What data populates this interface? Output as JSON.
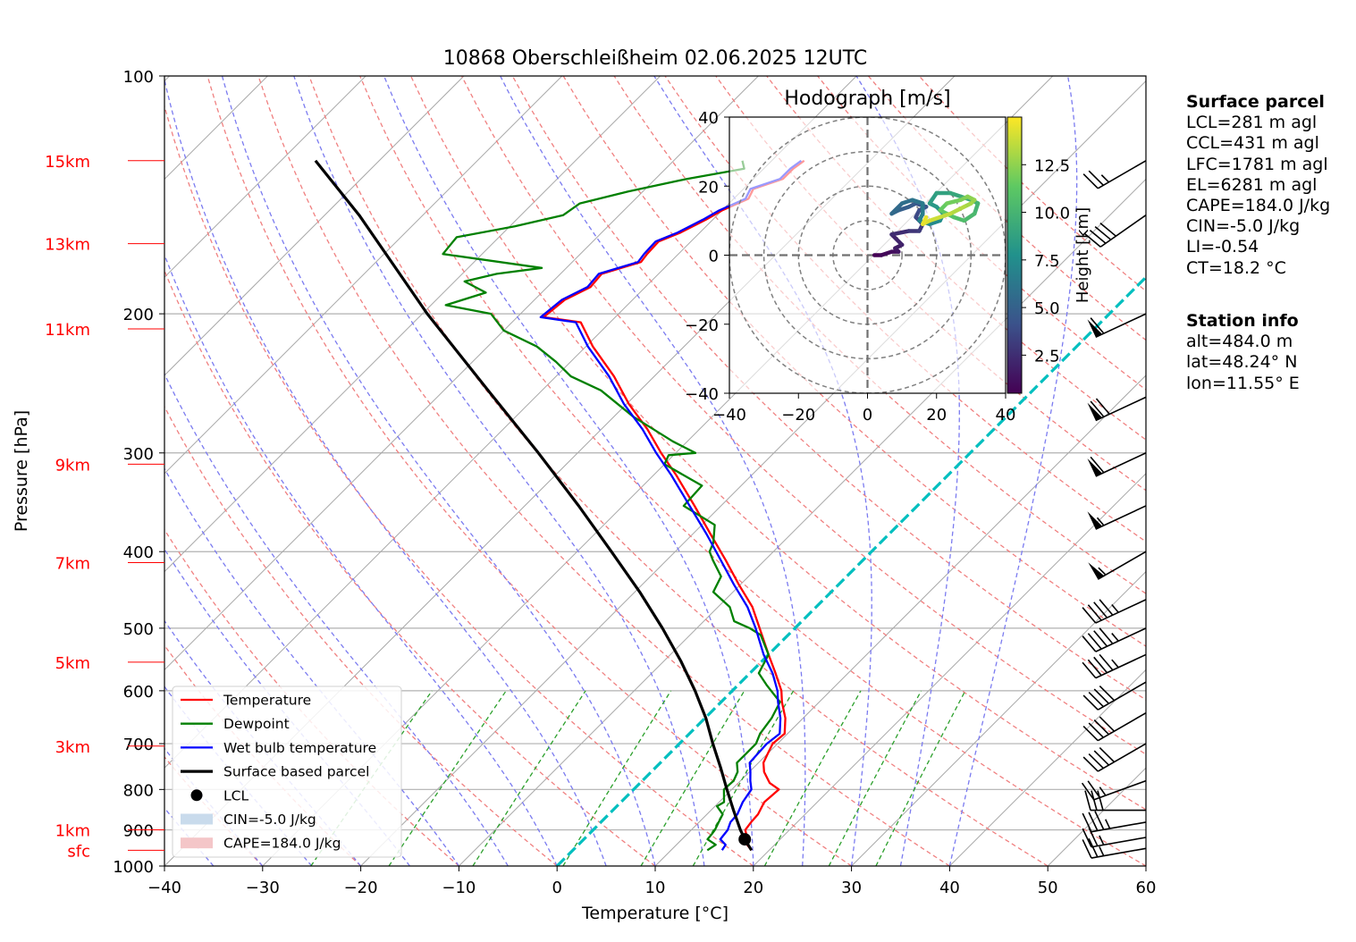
{
  "title": "10868 Oberschleißheim 02.06.2025 12UTC",
  "colors": {
    "temperature": "#ff0000",
    "dewpoint": "#008000",
    "wetbulb": "#0000ff",
    "parcel": "#000000",
    "isotherm_zero": "#00bfbf",
    "dry_adiabat": "#f08080",
    "moist_adiabat": "#7b7bf0",
    "mixing_ratio": "#2ca02c",
    "cape_fill": "#f4c6c8",
    "cin_fill": "#c9dbec",
    "altitude_labels": "#ff0000"
  },
  "chart_data": [
    {
      "type": "line",
      "subtype": "skew-T log-p diagram",
      "title": "10868 Oberschleißheim 02.06.2025 12UTC",
      "xlabel": "Temperature [°C]",
      "ylabel": "Pressure [hPa]",
      "xlim": [
        -40,
        60
      ],
      "ylim": [
        1000,
        100
      ],
      "y_scale": "log",
      "x_ticks": [
        -40,
        -30,
        -20,
        -10,
        0,
        10,
        20,
        30,
        40,
        50,
        60
      ],
      "y_ticks": [
        100,
        200,
        300,
        400,
        500,
        600,
        700,
        800,
        900,
        1000
      ],
      "grid": true,
      "altitude_labels": [
        {
          "label": "15km",
          "p": 128
        },
        {
          "label": "13km",
          "p": 163
        },
        {
          "label": "11km",
          "p": 209
        },
        {
          "label": "9km",
          "p": 310
        },
        {
          "label": "7km",
          "p": 413
        },
        {
          "label": "5km",
          "p": 552
        },
        {
          "label": "3km",
          "p": 705
        },
        {
          "label": "1km",
          "p": 900
        },
        {
          "label": "sfc",
          "p": 955
        }
      ],
      "legend_position": "lower left",
      "series": [
        {
          "name": "Temperature",
          "p": [
            955,
            940,
            925,
            915,
            900,
            880,
            860,
            830,
            800,
            785,
            760,
            740,
            720,
            700,
            680,
            650,
            620,
            600,
            570,
            540,
            500,
            470,
            440,
            410,
            380,
            350,
            320,
            300,
            280,
            260,
            240,
            220,
            205,
            202,
            192,
            185,
            178,
            172,
            168,
            162,
            158,
            152,
            148,
            143,
            139,
            135,
            131,
            128
          ],
          "t": [
            18.2,
            17.2,
            16.4,
            16.2,
            15.5,
            15.3,
            15.2,
            14.6,
            14.8,
            13.2,
            11.5,
            10.5,
            10.0,
            9.5,
            9.7,
            8.2,
            6.2,
            5.0,
            2.6,
            0.0,
            -3.6,
            -6.5,
            -10.2,
            -14.0,
            -18.2,
            -22.7,
            -27.7,
            -31.5,
            -35.3,
            -39.8,
            -44.1,
            -49.3,
            -53.0,
            -57.3,
            -56.9,
            -55.6,
            -55.8,
            -53.0,
            -53.2,
            -53.3,
            -52.0,
            -50.7,
            -50.0,
            -48.5,
            -49.0,
            -47.0,
            -47.0,
            -46.7
          ]
        },
        {
          "name": "Dewpoint",
          "p": [
            955,
            940,
            925,
            910,
            900,
            880,
            860,
            840,
            830,
            800,
            780,
            760,
            740,
            720,
            700,
            680,
            650,
            620,
            590,
            570,
            540,
            510,
            500,
            490,
            470,
            450,
            430,
            410,
            400,
            390,
            370,
            350,
            330,
            310,
            302,
            300,
            290,
            270,
            250,
            240,
            230,
            220,
            210,
            200,
            195,
            188,
            182,
            178,
            175,
            168,
            160,
            155,
            150,
            145,
            140,
            135,
            131,
            128
          ],
          "t": [
            13.7,
            14.0,
            12.6,
            12.5,
            12.4,
            12.0,
            11.6,
            10.2,
            10.5,
            9.2,
            9.3,
            8.8,
            7.8,
            7.8,
            7.8,
            7.2,
            6.8,
            6.0,
            2.9,
            0.9,
            0.0,
            -2.8,
            -4.6,
            -6.9,
            -8.8,
            -12.0,
            -12.8,
            -15.3,
            -16.5,
            -17.0,
            -18.7,
            -23.8,
            -24.0,
            -30.0,
            -30.5,
            -28.0,
            -31.5,
            -38.0,
            -44.0,
            -48.5,
            -51.5,
            -55.0,
            -60.0,
            -63.0,
            -68.5,
            -65.7,
            -69.0,
            -66.5,
            -62.5,
            -74.0,
            -74.3,
            -69.5,
            -65.7,
            -65.2,
            -61.5,
            -56.8,
            -52.0,
            -53.0
          ]
        },
        {
          "name": "Wet bulb temperature",
          "p": [
            955,
            940,
            925,
            900,
            880,
            860,
            830,
            800,
            780,
            760,
            740,
            720,
            700,
            680,
            650,
            620,
            600,
            570,
            540,
            500,
            470,
            440,
            410,
            380,
            350,
            320,
            300,
            280,
            260,
            240,
            220,
            205,
            202,
            192,
            185,
            178,
            172,
            168,
            162,
            158,
            152,
            148,
            143,
            139,
            135,
            131,
            128
          ],
          "t": [
            15.2,
            15.0,
            13.9,
            13.7,
            13.2,
            13.1,
            12.4,
            12.0,
            11.0,
            10.1,
            9.1,
            9.0,
            8.9,
            9.2,
            7.7,
            5.8,
            4.6,
            2.3,
            -0.5,
            -4.0,
            -7.0,
            -10.7,
            -14.5,
            -18.6,
            -23.2,
            -28.2,
            -32.0,
            -35.8,
            -40.3,
            -44.6,
            -49.8,
            -53.5,
            -57.6,
            -57.2,
            -55.9,
            -56.1,
            -53.3,
            -53.5,
            -53.6,
            -52.3,
            -51.0,
            -50.3,
            -48.8,
            -49.3,
            -47.3,
            -47.3,
            -47.0
          ]
        },
        {
          "name": "Surface based parcel",
          "p": [
            955,
            925,
            900,
            850,
            800,
            750,
            700,
            650,
            600,
            550,
            500,
            450,
            400,
            350,
            300,
            250,
            200,
            150,
            128
          ],
          "t": [
            18.2,
            16.4,
            15.0,
            12.3,
            9.5,
            6.6,
            3.4,
            0.1,
            -3.8,
            -8.3,
            -13.5,
            -19.5,
            -26.5,
            -34.5,
            -44.0,
            -55.5,
            -69.5,
            -86.5,
            -96.5
          ]
        },
        {
          "name": "LCL",
          "p": [
            925
          ],
          "t": [
            16.4
          ]
        }
      ],
      "shading": [
        {
          "name": "CIN=-5.0 J/kg"
        },
        {
          "name": "CAPE=184.0 J/kg"
        }
      ],
      "wind_barbs": [
        {
          "p": 950,
          "speed_kt": 25,
          "direction_deg": 260
        },
        {
          "p": 920,
          "speed_kt": 25,
          "direction_deg": 260
        },
        {
          "p": 880,
          "speed_kt": 35,
          "direction_deg": 260
        },
        {
          "p": 850,
          "speed_kt": 30,
          "direction_deg": 270
        },
        {
          "p": 780,
          "speed_kt": 25,
          "direction_deg": 250
        },
        {
          "p": 700,
          "speed_kt": 40,
          "direction_deg": 240
        },
        {
          "p": 640,
          "speed_kt": 40,
          "direction_deg": 240
        },
        {
          "p": 585,
          "speed_kt": 40,
          "direction_deg": 240
        },
        {
          "p": 540,
          "speed_kt": 45,
          "direction_deg": 245
        },
        {
          "p": 500,
          "speed_kt": 45,
          "direction_deg": 245
        },
        {
          "p": 460,
          "speed_kt": 45,
          "direction_deg": 245
        },
        {
          "p": 400,
          "speed_kt": 55,
          "direction_deg": 240
        },
        {
          "p": 350,
          "speed_kt": 55,
          "direction_deg": 245
        },
        {
          "p": 300,
          "speed_kt": 60,
          "direction_deg": 245
        },
        {
          "p": 255,
          "speed_kt": 70,
          "direction_deg": 245
        },
        {
          "p": 200,
          "speed_kt": 60,
          "direction_deg": 245
        },
        {
          "p": 150,
          "speed_kt": 40,
          "direction_deg": 235
        },
        {
          "p": 128,
          "speed_kt": 25,
          "direction_deg": 240
        }
      ]
    },
    {
      "type": "line",
      "subtype": "hodograph",
      "title": "Hodograph [m/s]",
      "xlim": [
        -40,
        40
      ],
      "ylim": [
        -40,
        40
      ],
      "x_ticks": [
        -40,
        -20,
        0,
        20,
        40
      ],
      "y_ticks": [
        -40,
        -20,
        0,
        20,
        40
      ],
      "rings": [
        10,
        20,
        30,
        40
      ],
      "colorbar": {
        "label": "Height [km]",
        "ticks": [
          2.5,
          5.0,
          7.5,
          10.0,
          12.5
        ],
        "range": [
          0.5,
          15
        ]
      },
      "u": [
        2,
        4,
        7,
        9,
        8,
        10,
        7,
        12,
        15,
        16,
        14,
        15,
        17,
        14,
        12,
        9,
        7,
        10,
        13,
        16,
        16,
        15,
        18,
        21,
        22,
        20,
        18,
        20,
        24,
        27,
        30,
        32,
        31,
        28,
        25,
        23,
        21,
        23,
        27,
        29,
        31,
        30,
        28,
        24,
        21,
        18,
        16,
        17
      ],
      "v": [
        0,
        0,
        1,
        1,
        2,
        3,
        6,
        7,
        7,
        9,
        11,
        13,
        14,
        15,
        14,
        13,
        12,
        15,
        16,
        15,
        12,
        10,
        9,
        10,
        12,
        14,
        15,
        18,
        18,
        17,
        16,
        15,
        12,
        10,
        11,
        12,
        13,
        15,
        16,
        17,
        16,
        15,
        14,
        12,
        11,
        10,
        9,
        11
      ],
      "height_km": [
        0.5,
        0.8,
        1.1,
        1.4,
        1.7,
        2.0,
        2.4,
        2.8,
        3.1,
        3.4,
        3.7,
        4.0,
        4.3,
        4.6,
        4.9,
        5.2,
        5.5,
        5.8,
        6.1,
        6.4,
        6.7,
        7.0,
        7.3,
        7.6,
        7.9,
        8.2,
        8.5,
        8.8,
        9.1,
        9.4,
        9.7,
        10.0,
        10.3,
        10.6,
        10.9,
        11.2,
        11.5,
        11.8,
        12.1,
        12.4,
        12.7,
        13.0,
        13.3,
        13.6,
        13.9,
        14.2,
        14.5,
        14.8
      ]
    }
  ],
  "surface_parcel": {
    "heading": "Surface parcel",
    "lines": [
      "LCL=281 m agl",
      "CCL=431 m agl",
      "LFC=1781 m agl",
      "EL=6281 m agl",
      "CAPE=184.0 J/kg",
      "CIN=-5.0 J/kg",
      "LI=-0.54",
      "CT=18.2 °C"
    ]
  },
  "station_info": {
    "heading": "Station info",
    "lines": [
      "alt=484.0 m",
      "lat=48.24° N",
      "lon=11.55° E"
    ]
  }
}
